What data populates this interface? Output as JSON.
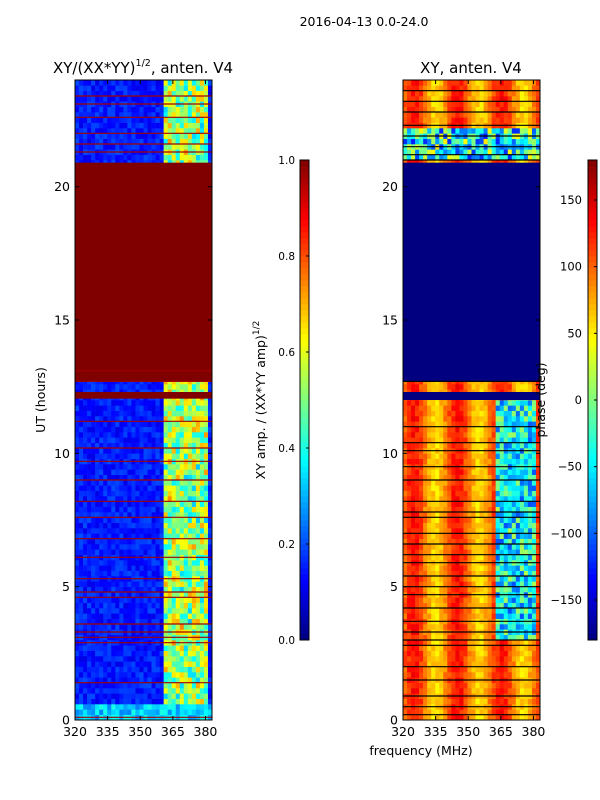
{
  "figure": {
    "suptitle": "2016-04-13 0.0-24.0",
    "shared_xlabel": "frequency (MHz)"
  },
  "colors": {
    "nodata_blue": "#00007f",
    "saturated_red": "#7f0000",
    "flag_line_black": "#000000",
    "flag_line_red": "#a00000",
    "frame": "#000000"
  },
  "chart_data": [
    {
      "type": "heatmap",
      "name": "amplitude",
      "title": "XY/(XX*YY)",
      "title_superscript": "1/2",
      "title_suffix": ", anten. V4",
      "xlabel": "",
      "ylabel": "UT (hours)",
      "xlim": [
        320,
        383
      ],
      "ylim": [
        0,
        24
      ],
      "xticks": [
        320,
        335,
        350,
        365,
        380
      ],
      "yticks": [
        0,
        5,
        10,
        15,
        20
      ],
      "colorbar": {
        "label": "XY amp. / (XX*YY amp)",
        "label_superscript": "1/2",
        "range": [
          0.0,
          1.0
        ],
        "ticks": [
          0.0,
          0.2,
          0.4,
          0.6,
          0.8,
          1.0
        ],
        "tick_labels": [
          "0.0",
          "0.2",
          "0.4",
          "0.6",
          "0.8",
          "1.0"
        ]
      },
      "regions": [
        {
          "ut": [
            12.68,
            20.9
          ],
          "value": 1.0,
          "note": "saturated block"
        },
        {
          "ut": [
            12.05,
            12.3
          ],
          "value": 1.0,
          "note": "saturated band"
        }
      ],
      "flag_lines_ut": [
        0.1,
        1.4,
        2.9,
        3.1,
        3.3,
        3.6,
        4.6,
        4.8,
        5.3,
        6.1,
        6.8,
        7.6,
        8.2,
        9.0,
        9.7,
        10.2,
        11.2,
        12.7,
        13.1,
        21.3,
        21.6,
        22.0,
        22.6,
        23.1,
        23.4
      ],
      "description_values": {
        "background_typical": 0.12,
        "high_band_365_380": 0.45
      }
    },
    {
      "type": "heatmap",
      "name": "phase",
      "title": "XY, anten. V4",
      "xlabel": "frequency (MHz)",
      "ylabel": "",
      "xlim": [
        320,
        383
      ],
      "ylim": [
        0,
        24
      ],
      "xticks": [
        320,
        335,
        350,
        365,
        380
      ],
      "yticks": [
        0,
        5,
        10,
        15,
        20
      ],
      "colorbar": {
        "label": "phase (deg)",
        "range": [
          -180,
          180
        ],
        "ticks": [
          -150,
          -100,
          -50,
          0,
          50,
          100,
          150
        ],
        "tick_labels": [
          "−150",
          "−100",
          "−50",
          "0",
          "50",
          "100",
          "150"
        ]
      },
      "regions": [
        {
          "ut": [
            12.68,
            20.9
          ],
          "value": -180,
          "note": "no data block"
        },
        {
          "ut": [
            12.0,
            12.3
          ],
          "value": -180,
          "note": "no data band"
        }
      ],
      "flag_lines_ut": [
        0.2,
        0.5,
        0.9,
        1.5,
        2.0,
        2.8,
        3.0,
        3.3,
        3.7,
        4.2,
        4.7,
        5.0,
        5.4,
        5.9,
        6.2,
        6.6,
        7.0,
        7.6,
        7.8,
        8.2,
        9.0,
        9.5,
        10.1,
        10.4,
        11.0,
        12.7,
        21.0,
        21.2,
        21.5,
        21.9,
        22.3,
        22.8,
        23.2,
        23.6
      ],
      "description_values": {
        "background_typical_deg": 110,
        "low_phase_region_deg": -140
      }
    }
  ]
}
